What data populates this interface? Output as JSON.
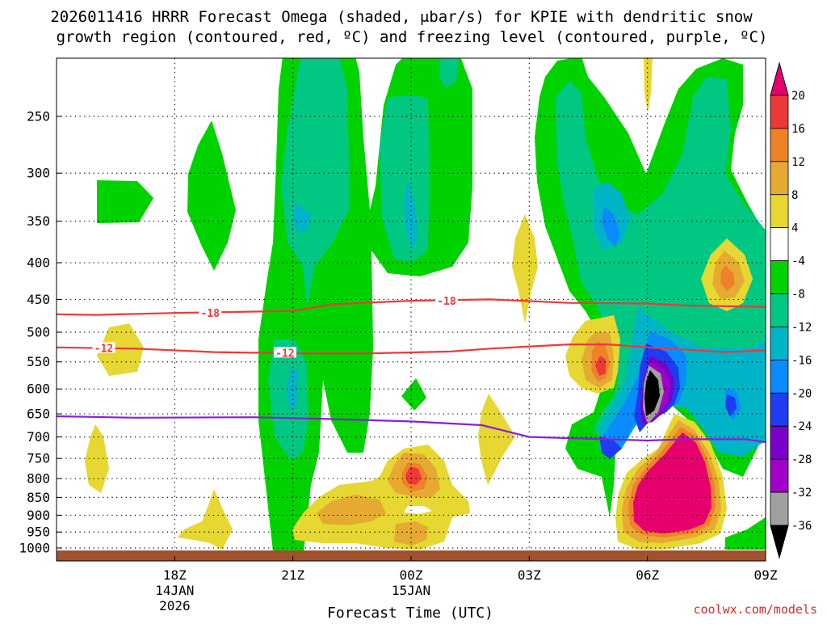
{
  "chart_data": {
    "type": "heatmap",
    "title_line1": "2026011416 HRRR Forecast Omega (shaded, μbar/s) for KPIE with dendritic snow",
    "title_line2": "growth region (contoured, red, ºC) and freezing level (contoured, purple, ºC)",
    "xlabel": "Forecast Time (UTC)",
    "ylabel": "",
    "credit": "coolwx.com/models",
    "x_hour_range": [
      -3,
      15
    ],
    "y_range_hpa": [
      200,
      1000
    ],
    "y_ticks": [
      "250",
      "300",
      "350",
      "400",
      "450",
      "500",
      "550",
      "600",
      "650",
      "700",
      "750",
      "800",
      "850",
      "900",
      "950",
      "1000"
    ],
    "y_tick_values": [
      250,
      300,
      350,
      400,
      450,
      500,
      550,
      600,
      650,
      700,
      750,
      800,
      850,
      900,
      950,
      1000
    ],
    "x_ticks": [
      {
        "hour": 0,
        "label": "18Z",
        "sub1": "14JAN",
        "sub2": "2026"
      },
      {
        "hour": 3,
        "label": "21Z",
        "sub1": "",
        "sub2": ""
      },
      {
        "hour": 6,
        "label": "00Z",
        "sub1": "15JAN",
        "sub2": ""
      },
      {
        "hour": 9,
        "label": "03Z",
        "sub1": "",
        "sub2": ""
      },
      {
        "hour": 12,
        "label": "06Z",
        "sub1": "",
        "sub2": ""
      },
      {
        "hour": 15,
        "label": "09Z",
        "sub1": "",
        "sub2": ""
      }
    ],
    "colorbar": {
      "labels": [
        "20",
        "16",
        "12",
        "8",
        "4",
        "-4",
        "-8",
        "-12",
        "-16",
        "-20",
        "-24",
        "-28",
        "-32",
        "-36"
      ],
      "levels": [
        20,
        16,
        12,
        8,
        4,
        -4,
        -8,
        -12,
        -16,
        -20,
        -24,
        -28,
        -32,
        -36
      ],
      "colors": [
        "#e6006e",
        "#ee3838",
        "#ee8228",
        "#e6aa32",
        "#e6d732",
        "#ffffff",
        "#00d200",
        "#00c882",
        "#00b4c8",
        "#0a8cff",
        "#1e3cf0",
        "#7800c8",
        "#a000c8",
        "#a0a0a0",
        "#000000"
      ]
    },
    "contours": [
      {
        "name": "dendritic -18C",
        "label": "-18",
        "color": "#ee3838",
        "points": [
          [
            -3,
            472
          ],
          [
            -2,
            473
          ],
          [
            0,
            470
          ],
          [
            2,
            468
          ],
          [
            3,
            467
          ],
          [
            4,
            457
          ],
          [
            6,
            452
          ],
          [
            8,
            450
          ],
          [
            10,
            455
          ],
          [
            12,
            456
          ],
          [
            13,
            459
          ],
          [
            15,
            461
          ],
          [
            16,
            467
          ]
        ]
      },
      {
        "name": "dendritic -12C",
        "label": "-12",
        "color": "#ee3838",
        "points": [
          [
            -3,
            525
          ],
          [
            -1,
            527
          ],
          [
            1,
            533
          ],
          [
            3,
            535
          ],
          [
            5,
            535
          ],
          [
            7,
            532
          ],
          [
            8,
            527
          ],
          [
            10,
            520
          ],
          [
            11,
            520
          ],
          [
            12,
            525
          ],
          [
            14,
            533
          ],
          [
            15,
            530
          ],
          [
            16,
            520
          ]
        ]
      },
      {
        "name": "freezing level 0C",
        "label": "",
        "color": "#8a1ed8",
        "points": [
          [
            -3,
            655
          ],
          [
            -1,
            658
          ],
          [
            2,
            657
          ],
          [
            4,
            661
          ],
          [
            6,
            666
          ],
          [
            7.8,
            674
          ],
          [
            9,
            700
          ],
          [
            11,
            705
          ],
          [
            12,
            708
          ],
          [
            13,
            705
          ],
          [
            14.5,
            705
          ],
          [
            16,
            726
          ]
        ]
      }
    ],
    "omega_regions": [
      {
        "value": -6,
        "hour_center": 3.8,
        "hpa_center": 430,
        "description": "broad rising motion column 21Z-00Z aloft"
      },
      {
        "value": -6,
        "hour_center": 12.5,
        "hpa_center": 400,
        "description": "deep rising motion 05Z-10Z"
      },
      {
        "value": -34,
        "hour_center": 13.0,
        "hpa_center": 600,
        "description": "strongest ascent core near 07Z, 600 hPa"
      },
      {
        "value": 22,
        "hour_center": 14.0,
        "hpa_center": 830,
        "description": "strong sinking motion near 08Z low levels"
      },
      {
        "value": 14,
        "hour_center": 7.0,
        "hpa_center": 790,
        "description": "sinking maximum near 01Z, 800 hPa"
      }
    ]
  }
}
